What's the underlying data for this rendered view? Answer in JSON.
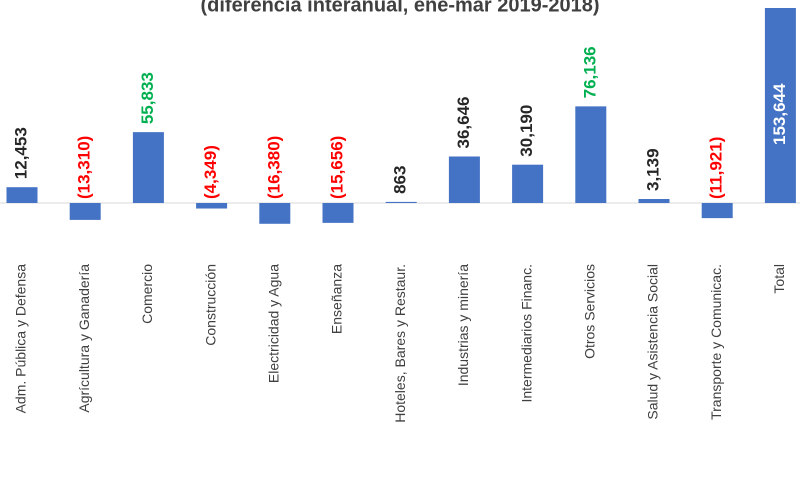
{
  "chart_data": {
    "type": "bar",
    "title": "(diferencia interanual, ene-mar 2019-2018)",
    "categories": [
      "Adm. Pública y Defensa",
      "Agrícultura y Ganadería",
      "Comercio",
      "Construcción",
      "Electricidad y Agua",
      "Enseñanza",
      "Hoteles, Bares y Restaur.",
      "Industrias y minería",
      "Intermediarios Financ.",
      "Otros Servicios",
      "Salud y Asistencia Social",
      "Transporte y Comunicac.",
      "Total"
    ],
    "values": [
      12453,
      -13310,
      55833,
      -4349,
      -16380,
      -15656,
      863,
      36646,
      30190,
      76136,
      3139,
      -11921,
      153644
    ],
    "value_labels": [
      "12,453",
      "(13,310)",
      "55,833",
      "(4,349)",
      "(16,380)",
      "(15,656)",
      "863",
      "36,646",
      "30,190",
      "76,136",
      "3,139",
      "(11,921)",
      "153,644"
    ],
    "value_label_colors": [
      "#262626",
      "#ff0000",
      "#00b050",
      "#ff0000",
      "#ff0000",
      "#ff0000",
      "#262626",
      "#262626",
      "#262626",
      "#00b050",
      "#262626",
      "#ff0000",
      "#ffffff"
    ],
    "color": "#4472c4"
  }
}
